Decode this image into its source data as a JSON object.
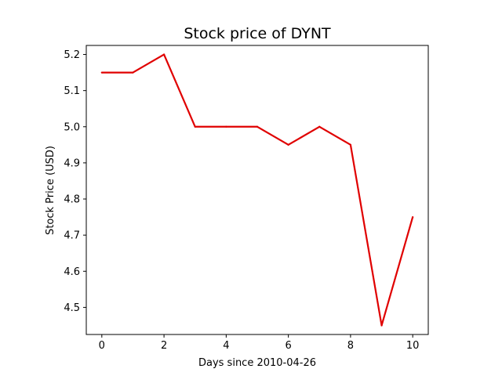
{
  "chart_data": {
    "type": "line",
    "title": "Stock price of DYNT",
    "xlabel": "Days since 2010-04-26",
    "ylabel": "Stock Price (USD)",
    "x": [
      0,
      1,
      2,
      3,
      4,
      5,
      6,
      7,
      8,
      9,
      10
    ],
    "series": [
      {
        "values": [
          5.15,
          5.15,
          5.2,
          5.0,
          5.0,
          5.0,
          4.95,
          5.0,
          4.95,
          4.45,
          4.75
        ],
        "color": "#e00000"
      }
    ],
    "xlim": [
      -0.5,
      10.5
    ],
    "ylim": [
      4.425,
      5.225
    ],
    "xticks": [
      0,
      2,
      4,
      6,
      8,
      10
    ],
    "yticks": [
      4.5,
      4.6,
      4.7,
      4.8,
      4.9,
      5.0,
      5.1,
      5.2
    ],
    "ytick_labels": [
      "4.5",
      "4.6",
      "4.7",
      "4.8",
      "4.9",
      "5.0",
      "5.1",
      "5.2"
    ],
    "grid": false,
    "legend": false
  }
}
